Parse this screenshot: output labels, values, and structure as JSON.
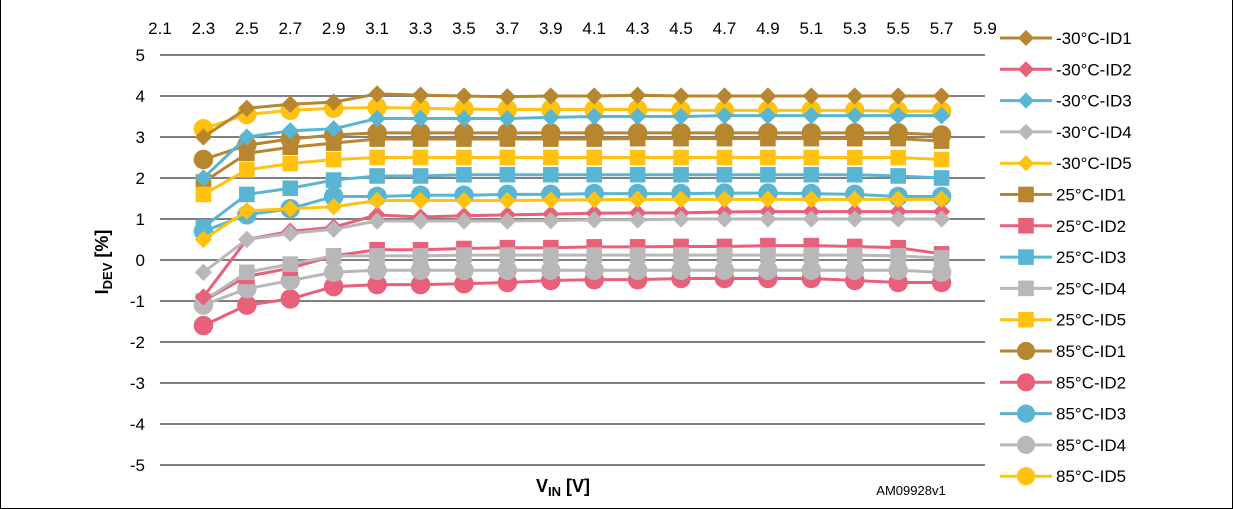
{
  "chart_data": {
    "type": "line",
    "xlabel": {
      "main": "V",
      "sub": "IN",
      "unit": " [V]"
    },
    "ylabel": {
      "main": "I",
      "sub": "DEV",
      "unit": " [%]"
    },
    "credit": "AM09928v1",
    "x_ticks": [
      "2.1",
      "2.3",
      "2.5",
      "2.7",
      "2.9",
      "3.1",
      "3.3",
      "3.5",
      "3.7",
      "3.9",
      "4.1",
      "4.3",
      "4.5",
      "4.7",
      "4.9",
      "5.1",
      "5.3",
      "5.5",
      "5.7",
      "5.9"
    ],
    "ylim": [
      -5,
      5
    ],
    "y_ticks": [
      5,
      4,
      3,
      2,
      1,
      0,
      -1,
      -2,
      -3,
      -4,
      -5
    ],
    "grid": "horizontal",
    "legend_position": "right",
    "x": [
      2.3,
      2.5,
      2.7,
      2.9,
      3.1,
      3.3,
      3.5,
      3.7,
      3.9,
      4.1,
      4.3,
      4.5,
      4.7,
      4.9,
      5.1,
      5.3,
      5.5,
      5.7
    ],
    "series": [
      {
        "name": "-30°C-ID1",
        "color": "#B8862E",
        "marker": "diamond",
        "values": [
          3.0,
          3.7,
          3.8,
          3.85,
          4.05,
          4.02,
          4.0,
          3.98,
          4.0,
          4.0,
          4.02,
          4.0,
          4.0,
          4.0,
          4.0,
          4.0,
          4.0,
          4.0
        ]
      },
      {
        "name": "-30°C-ID2",
        "color": "#E8607A",
        "marker": "diamond",
        "values": [
          -0.9,
          0.5,
          0.7,
          0.8,
          1.1,
          1.05,
          1.08,
          1.1,
          1.12,
          1.14,
          1.15,
          1.15,
          1.17,
          1.18,
          1.18,
          1.18,
          1.18,
          1.18
        ]
      },
      {
        "name": "-30°C-ID3",
        "color": "#5AB5D2",
        "marker": "diamond",
        "values": [
          2.0,
          3.0,
          3.15,
          3.2,
          3.45,
          3.45,
          3.45,
          3.45,
          3.48,
          3.5,
          3.5,
          3.5,
          3.52,
          3.52,
          3.52,
          3.52,
          3.52,
          3.52
        ]
      },
      {
        "name": "-30°C-ID4",
        "color": "#B8B8B8",
        "marker": "diamond",
        "values": [
          -0.3,
          0.5,
          0.65,
          0.75,
          0.95,
          0.95,
          0.95,
          0.95,
          0.96,
          0.98,
          0.98,
          1.0,
          1.0,
          1.0,
          1.0,
          1.0,
          1.0,
          1.0
        ]
      },
      {
        "name": "-30°C-ID5",
        "color": "#FFC20E",
        "marker": "diamond",
        "values": [
          0.5,
          1.2,
          1.25,
          1.3,
          1.45,
          1.45,
          1.45,
          1.45,
          1.46,
          1.47,
          1.48,
          1.48,
          1.48,
          1.48,
          1.48,
          1.48,
          1.48,
          1.48
        ]
      },
      {
        "name": "25°C-ID1",
        "color": "#B8862E",
        "marker": "square",
        "values": [
          1.9,
          2.6,
          2.75,
          2.85,
          2.95,
          2.95,
          2.95,
          2.95,
          2.95,
          2.95,
          2.96,
          2.96,
          2.96,
          2.96,
          2.96,
          2.96,
          2.96,
          2.9
        ]
      },
      {
        "name": "25°C-ID2",
        "color": "#E8607A",
        "marker": "square",
        "values": [
          -1.0,
          -0.4,
          -0.2,
          0.1,
          0.25,
          0.25,
          0.28,
          0.3,
          0.3,
          0.32,
          0.32,
          0.33,
          0.33,
          0.35,
          0.35,
          0.33,
          0.3,
          0.15
        ]
      },
      {
        "name": "25°C-ID3",
        "color": "#5AB5D2",
        "marker": "square",
        "values": [
          0.8,
          1.6,
          1.75,
          1.95,
          2.05,
          2.05,
          2.08,
          2.08,
          2.08,
          2.08,
          2.08,
          2.08,
          2.08,
          2.08,
          2.08,
          2.08,
          2.05,
          2.0
        ]
      },
      {
        "name": "25°C-ID4",
        "color": "#B8B8B8",
        "marker": "square",
        "values": [
          -1.0,
          -0.3,
          -0.1,
          0.1,
          0.1,
          0.1,
          0.12,
          0.12,
          0.12,
          0.12,
          0.12,
          0.12,
          0.12,
          0.12,
          0.12,
          0.12,
          0.1,
          0.05
        ]
      },
      {
        "name": "25°C-ID5",
        "color": "#FFC20E",
        "marker": "square",
        "values": [
          1.6,
          2.2,
          2.35,
          2.45,
          2.5,
          2.5,
          2.5,
          2.5,
          2.5,
          2.5,
          2.5,
          2.5,
          2.5,
          2.5,
          2.5,
          2.5,
          2.5,
          2.45
        ]
      },
      {
        "name": "85°C-ID1",
        "color": "#B8862E",
        "marker": "circle",
        "values": [
          2.45,
          2.8,
          2.95,
          3.05,
          3.1,
          3.1,
          3.1,
          3.1,
          3.1,
          3.1,
          3.1,
          3.1,
          3.1,
          3.1,
          3.1,
          3.1,
          3.1,
          3.05
        ]
      },
      {
        "name": "85°C-ID2",
        "color": "#E8607A",
        "marker": "circle",
        "values": [
          -1.6,
          -1.1,
          -0.95,
          -0.65,
          -0.6,
          -0.6,
          -0.58,
          -0.55,
          -0.5,
          -0.48,
          -0.48,
          -0.45,
          -0.45,
          -0.45,
          -0.45,
          -0.5,
          -0.55,
          -0.55
        ]
      },
      {
        "name": "85°C-ID3",
        "color": "#5AB5D2",
        "marker": "circle",
        "values": [
          0.7,
          1.1,
          1.25,
          1.55,
          1.55,
          1.58,
          1.58,
          1.6,
          1.6,
          1.62,
          1.62,
          1.62,
          1.63,
          1.63,
          1.62,
          1.6,
          1.55,
          1.55
        ]
      },
      {
        "name": "85°C-ID4",
        "color": "#B8B8B8",
        "marker": "circle",
        "values": [
          -1.1,
          -0.7,
          -0.5,
          -0.3,
          -0.25,
          -0.25,
          -0.25,
          -0.25,
          -0.25,
          -0.25,
          -0.25,
          -0.25,
          -0.25,
          -0.25,
          -0.25,
          -0.25,
          -0.25,
          -0.3
        ]
      },
      {
        "name": "85°C-ID5",
        "color": "#FFC20E",
        "marker": "circle",
        "values": [
          3.2,
          3.55,
          3.65,
          3.7,
          3.72,
          3.7,
          3.68,
          3.67,
          3.67,
          3.67,
          3.67,
          3.65,
          3.65,
          3.65,
          3.65,
          3.65,
          3.63,
          3.63
        ]
      }
    ]
  }
}
